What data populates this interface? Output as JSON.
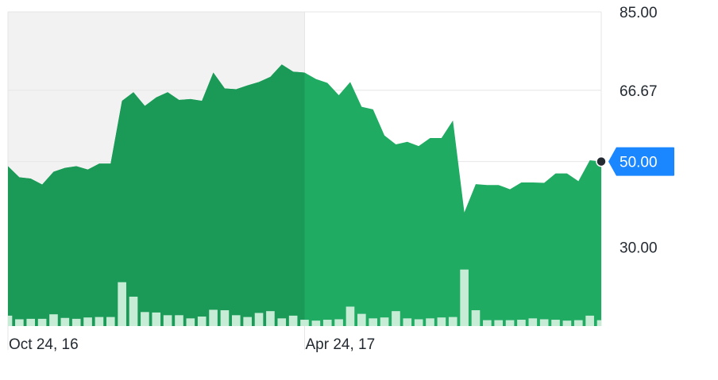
{
  "chart_data": {
    "type": "area",
    "colors": {
      "area": "#1fab62",
      "area_dark": "#1a9a56",
      "volume": "#c6ecd6",
      "shade": "#f2f2f2",
      "grid": "#e6e6e6",
      "badge": "#1a86ff",
      "dot": "#232a31"
    },
    "ylim": [
      11.5,
      85
    ],
    "yticks": [
      {
        "value": 85,
        "label": "85.00"
      },
      {
        "value": 66.67,
        "label": "66.67"
      },
      {
        "value": 50,
        "label": "50.00"
      },
      {
        "value": 30,
        "label": "30.00"
      }
    ],
    "x_labels": [
      {
        "index": 0,
        "label": "Oct 24, 16"
      },
      {
        "index": 26,
        "label": "Apr 24, 17"
      }
    ],
    "shaded_until_index": 26,
    "current_price": {
      "value": 50.0,
      "label": "50.00"
    },
    "price": [
      48.9,
      46.3,
      46.0,
      44.6,
      47.6,
      48.5,
      48.9,
      48.1,
      49.5,
      49.5,
      64.2,
      66.2,
      63.0,
      65.0,
      66.2,
      64.4,
      64.6,
      64.2,
      70.8,
      67.1,
      66.9,
      67.8,
      68.6,
      69.8,
      72.7,
      71.0,
      70.8,
      69.3,
      68.4,
      65.5,
      68.6,
      62.8,
      62.2,
      56.1,
      54.0,
      54.6,
      53.6,
      55.5,
      55.5,
      59.6,
      38.1,
      44.7,
      44.5,
      44.5,
      43.5,
      45.1,
      45.1,
      45.0,
      47.2,
      47.2,
      45.4,
      50.3,
      50.0
    ],
    "volume_ratio": [
      0.23,
      0.15,
      0.16,
      0.16,
      0.26,
      0.18,
      0.16,
      0.19,
      0.2,
      0.2,
      0.97,
      0.65,
      0.31,
      0.3,
      0.24,
      0.24,
      0.17,
      0.21,
      0.36,
      0.35,
      0.24,
      0.2,
      0.29,
      0.33,
      0.17,
      0.23,
      0.14,
      0.12,
      0.14,
      0.15,
      0.43,
      0.27,
      0.17,
      0.19,
      0.33,
      0.17,
      0.15,
      0.17,
      0.19,
      0.2,
      1.25,
      0.35,
      0.13,
      0.13,
      0.13,
      0.14,
      0.17,
      0.15,
      0.14,
      0.12,
      0.13,
      0.23,
      0.13
    ]
  }
}
